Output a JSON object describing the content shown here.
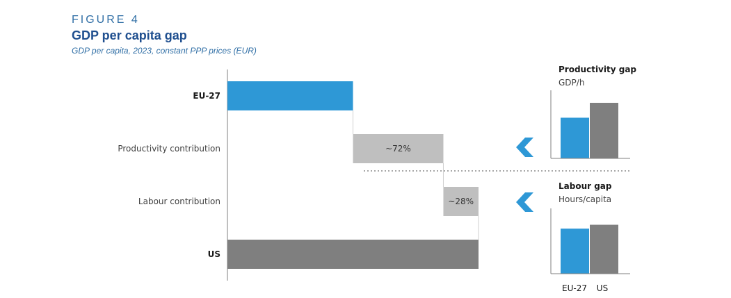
{
  "figure_label": "FIGURE 4",
  "title": "GDP per capita gap",
  "subtitle": "GDP per capita, 2023, constant PPP prices (EUR)",
  "colors": {
    "eu": "#2e98d6",
    "us": "#7f7f7f",
    "contribution": "#bfbfbf",
    "arrow": "#2e98d6",
    "axis": "#7f7f7f"
  },
  "chart_data": [
    {
      "type": "bar",
      "chart_kind": "waterfall",
      "orientation": "horizontal",
      "categories": [
        "EU-27",
        "Productivity contribution",
        "Labour contribution",
        "US"
      ],
      "values": [
        100,
        72,
        28,
        200
      ],
      "kinds": [
        "total",
        "delta",
        "delta",
        "total"
      ],
      "data_labels": [
        "",
        "~72%",
        "~28%",
        ""
      ],
      "scale_note": "relative units; EU-27 bar and US total, contributions split the gap 72/28"
    },
    {
      "type": "bar",
      "panel": "productivity",
      "title": "Productivity gap",
      "subtitle": "GDP/h",
      "categories": [
        "EU-27",
        "US"
      ],
      "values": [
        60,
        82
      ]
    },
    {
      "type": "bar",
      "panel": "labour",
      "title": "Labour gap",
      "subtitle": "Hours/capita",
      "categories": [
        "EU-27",
        "US"
      ],
      "values": [
        70,
        76
      ]
    }
  ]
}
